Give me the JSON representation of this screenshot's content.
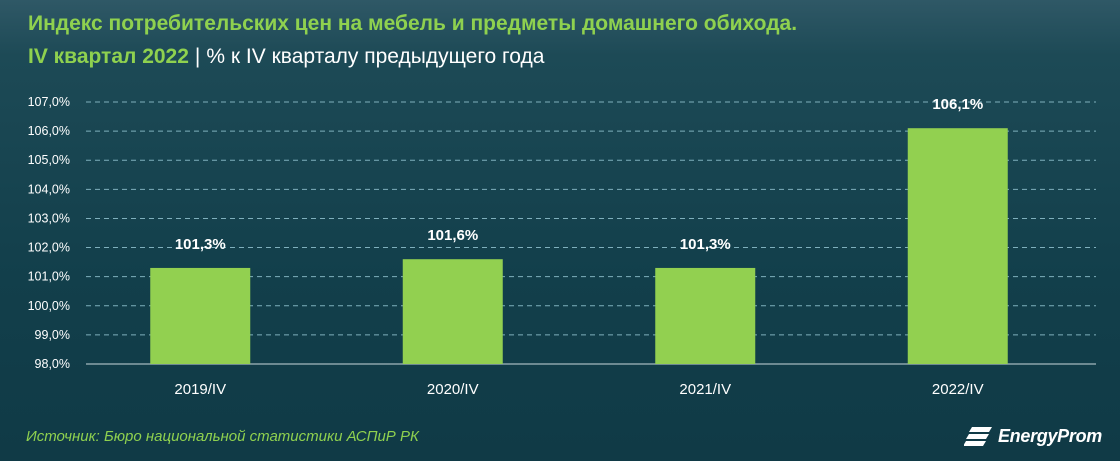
{
  "header": {
    "title": "Индекс потребительских цен на мебель и предметы домашнего обихода.",
    "period": "IV квартал 2022",
    "separator": "|",
    "unit_note": "% к IV кварталу предыдущего года"
  },
  "footer": {
    "source": "Источник: Бюро национальной статистики АСПиР РК",
    "logo_text": "EnergyProm",
    "logo_icon": "energyprom-logo-icon"
  },
  "colors": {
    "bar": "#92d050",
    "accent_text": "#8fd14f",
    "background": "#123f4b",
    "grid": "#7fb0bd"
  },
  "chart_data": {
    "type": "bar",
    "categories": [
      "2019/IV",
      "2020/IV",
      "2021/IV",
      "2022/IV"
    ],
    "values": [
      101.3,
      101.6,
      101.3,
      106.1
    ],
    "value_labels": [
      "101,3%",
      "101,6%",
      "101,3%",
      "106,1%"
    ],
    "title": "Индекс потребительских цен на мебель и предметы домашнего обихода.",
    "subtitle": "IV квартал 2022 | % к IV кварталу предыдущего года",
    "xlabel": "",
    "ylabel": "",
    "ylim": [
      98,
      107
    ],
    "yticks": [
      98,
      99,
      100,
      101,
      102,
      103,
      104,
      105,
      106,
      107
    ],
    "ytick_labels": [
      "98,0%",
      "99,0%",
      "100,0%",
      "101,0%",
      "102,0%",
      "103,0%",
      "104,0%",
      "105,0%",
      "106,0%",
      "107,0%"
    ],
    "grid": true,
    "legend": "none"
  }
}
